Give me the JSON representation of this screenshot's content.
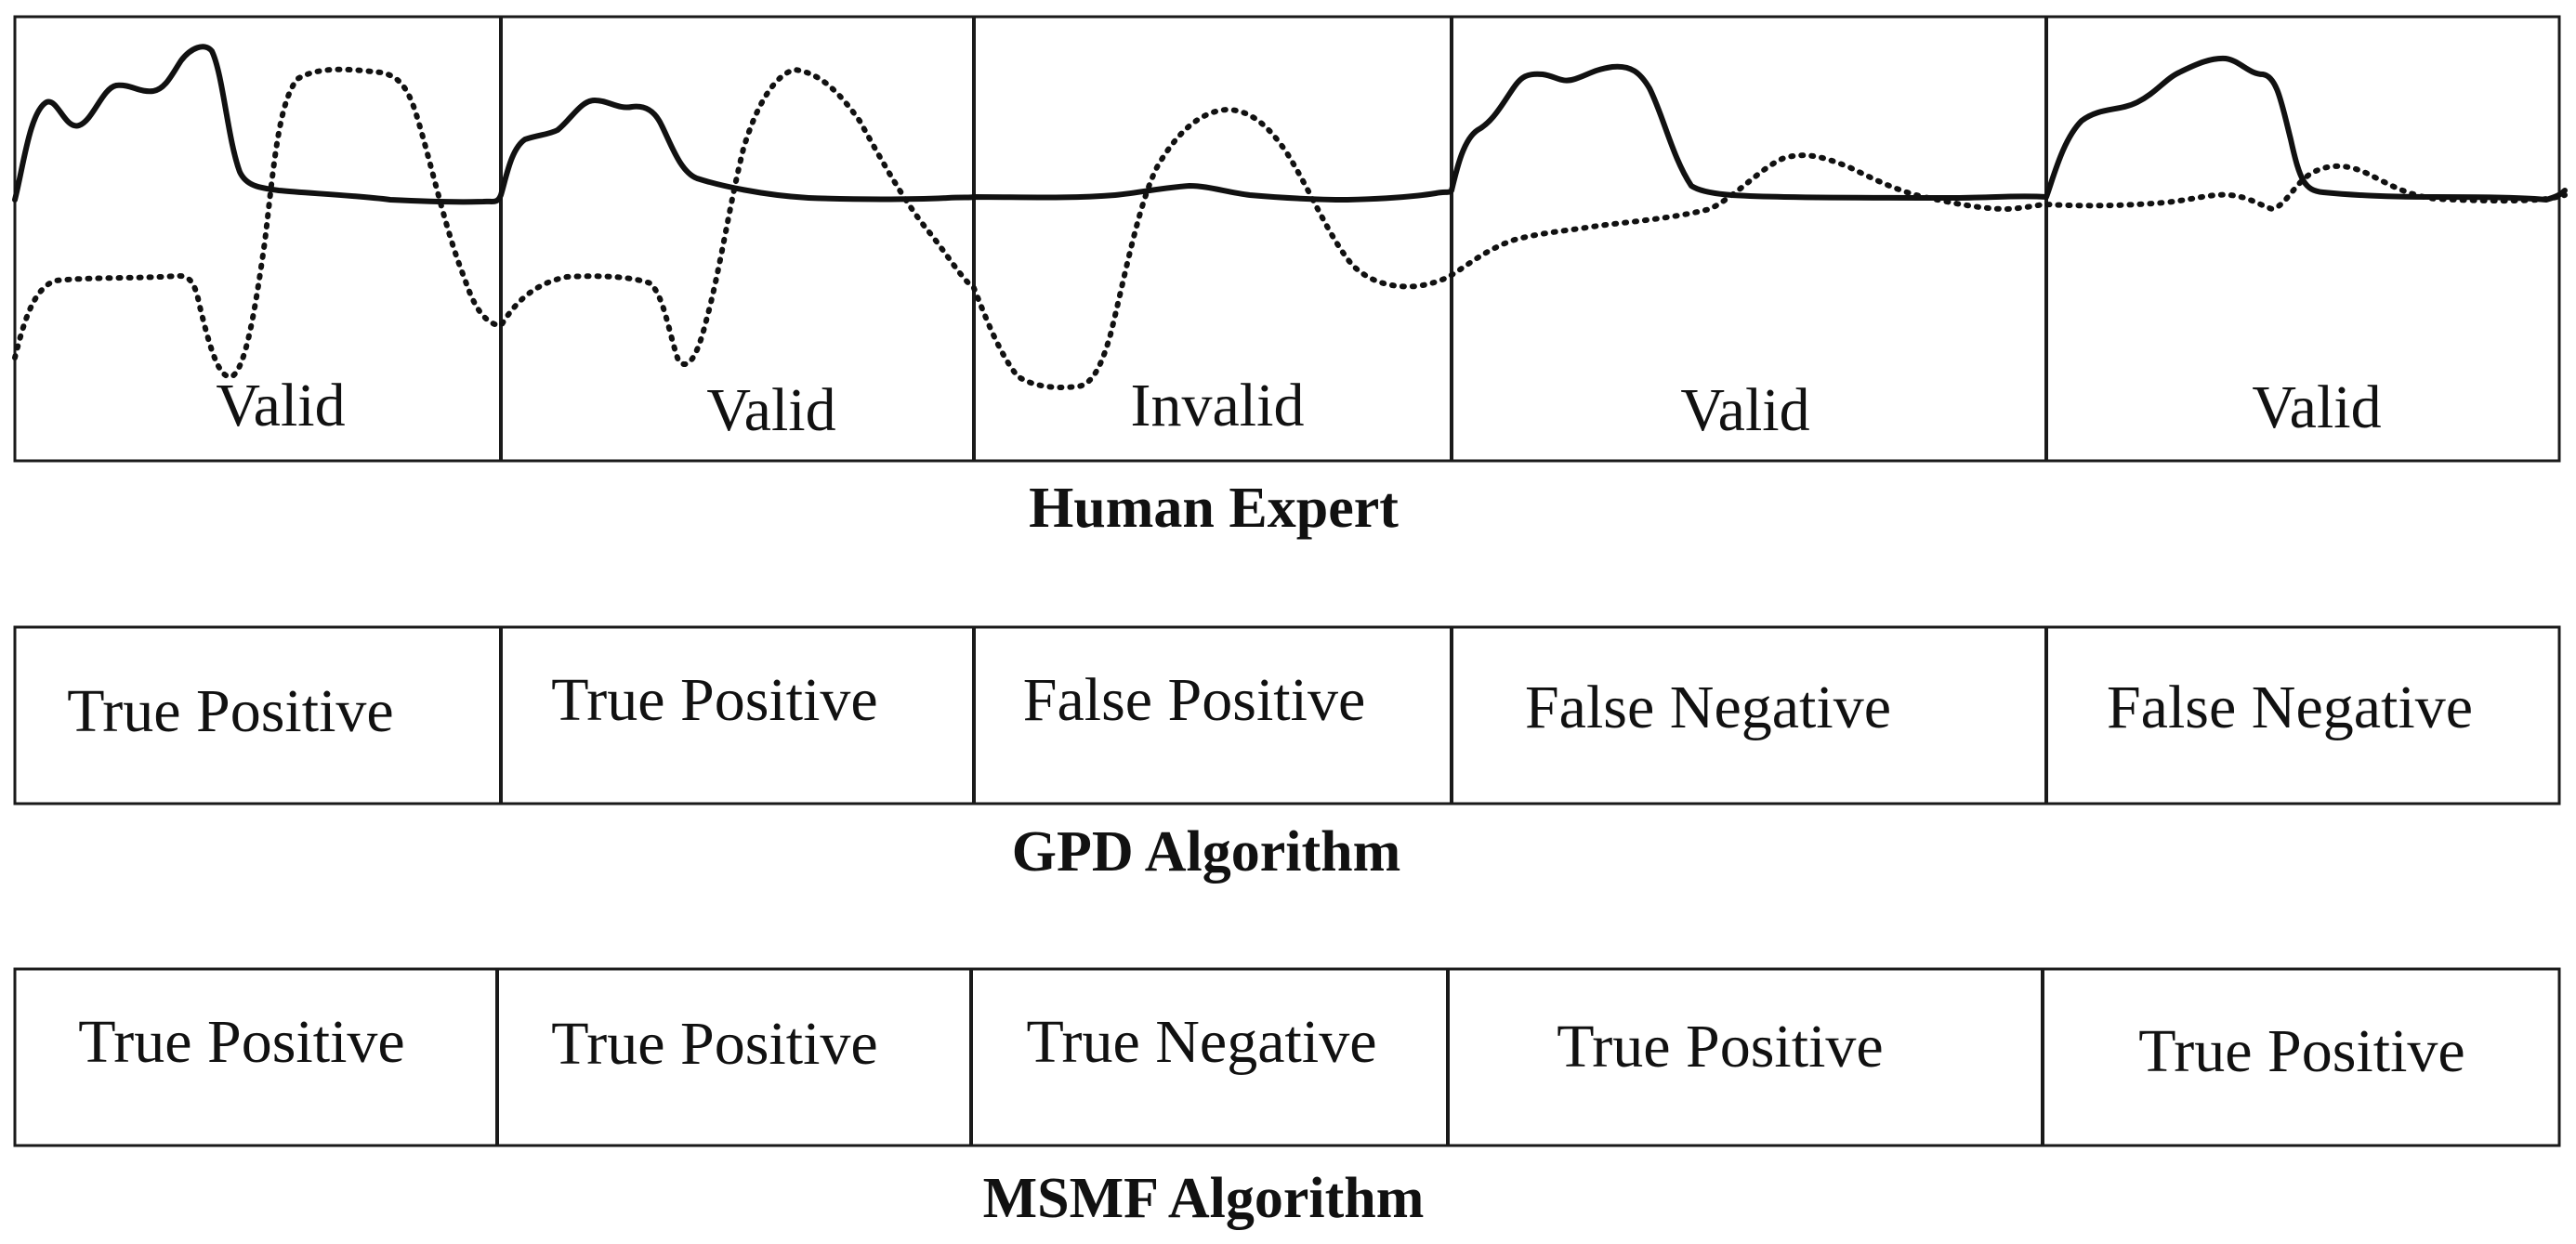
{
  "human_expert": {
    "caption": "Human Expert",
    "segments": [
      {
        "label": "Valid"
      },
      {
        "label": "Valid"
      },
      {
        "label": "Invalid"
      },
      {
        "label": "Valid"
      },
      {
        "label": "Valid"
      }
    ]
  },
  "gpd": {
    "caption": "GPD Algorithm",
    "cells": [
      "True Positive",
      "True Positive",
      "False Positive",
      "False Negative",
      "False Negative"
    ]
  },
  "msmf": {
    "caption": "MSMF Algorithm",
    "cells": [
      "True Positive",
      "True Positive",
      "True Negative",
      "True Positive",
      "True Positive"
    ]
  },
  "colors": {
    "line": "#111111",
    "background": "#ffffff"
  }
}
